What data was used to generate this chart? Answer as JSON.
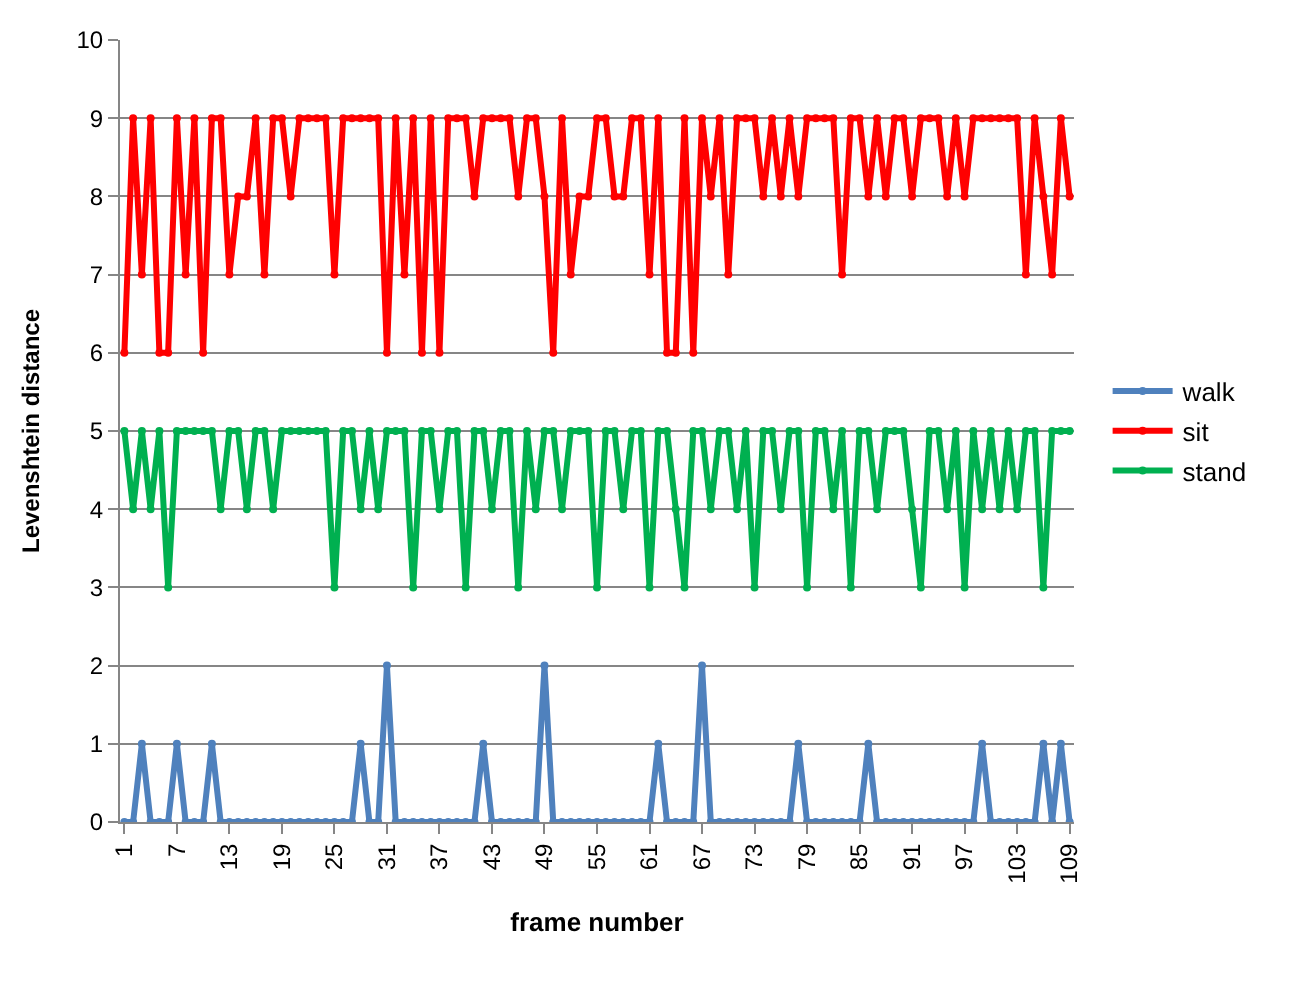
{
  "chart_data": {
    "type": "line",
    "xlabel": "frame number",
    "ylabel": "Levenshtein distance",
    "categories": [
      "1",
      null,
      null,
      null,
      null,
      null,
      "7",
      null,
      null,
      null,
      null,
      null,
      "13",
      null,
      null,
      null,
      null,
      null,
      "19",
      null,
      null,
      null,
      null,
      null,
      "25",
      null,
      null,
      null,
      null,
      null,
      "31",
      null,
      null,
      null,
      null,
      null,
      "37",
      null,
      null,
      null,
      null,
      null,
      "43",
      null,
      null,
      null,
      null,
      null,
      "49",
      null,
      null,
      null,
      null,
      null,
      "55",
      null,
      null,
      null,
      null,
      null,
      "61",
      null,
      null,
      null,
      null,
      null,
      "67",
      null,
      null,
      null,
      null,
      null,
      "73",
      null,
      null,
      null,
      null,
      null,
      "79",
      null,
      null,
      null,
      null,
      null,
      "85",
      null,
      null,
      null,
      null,
      null,
      "91",
      null,
      null,
      null,
      null,
      null,
      "97",
      null,
      null,
      null,
      null,
      null,
      "103",
      null,
      null,
      null,
      null,
      null,
      "109"
    ],
    "series": [
      {
        "name": "walk",
        "color": "#4f81bd",
        "values": [
          0,
          0,
          1,
          0,
          0,
          0,
          1,
          0,
          0,
          0,
          1,
          0,
          0,
          0,
          0,
          0,
          0,
          0,
          0,
          0,
          0,
          0,
          0,
          0,
          0,
          0,
          0,
          1,
          0,
          0,
          2,
          0,
          0,
          0,
          0,
          0,
          0,
          0,
          0,
          0,
          0,
          1,
          0,
          0,
          0,
          0,
          0,
          0,
          2,
          0,
          0,
          0,
          0,
          0,
          0,
          0,
          0,
          0,
          0,
          0,
          0,
          1,
          0,
          0,
          0,
          0,
          2,
          0,
          0,
          0,
          0,
          0,
          0,
          0,
          0,
          0,
          0,
          1,
          0,
          0,
          0,
          0,
          0,
          0,
          0,
          1,
          0,
          0,
          0,
          0,
          0,
          0,
          0,
          0,
          0,
          0,
          0,
          0,
          1,
          0,
          0,
          0,
          0,
          0,
          0,
          1,
          0,
          1,
          0
        ]
      },
      {
        "name": "sit",
        "color": "#ff0000",
        "values": [
          6,
          9,
          7,
          9,
          6,
          6,
          9,
          7,
          9,
          6,
          9,
          9,
          7,
          8,
          8,
          9,
          7,
          9,
          9,
          8,
          9,
          9,
          9,
          9,
          7,
          9,
          9,
          9,
          9,
          9,
          6,
          9,
          7,
          9,
          6,
          9,
          6,
          9,
          9,
          9,
          8,
          9,
          9,
          9,
          9,
          8,
          9,
          9,
          8,
          6,
          9,
          7,
          8,
          8,
          9,
          9,
          8,
          8,
          9,
          9,
          7,
          9,
          6,
          6,
          9,
          6,
          9,
          8,
          9,
          7,
          9,
          9,
          9,
          8,
          9,
          8,
          9,
          8,
          9,
          9,
          9,
          9,
          7,
          9,
          9,
          8,
          9,
          8,
          9,
          9,
          8,
          9,
          9,
          9,
          8,
          9,
          8,
          9,
          9,
          9,
          9,
          9,
          9,
          7,
          9,
          8,
          7,
          9,
          8
        ]
      },
      {
        "name": "stand",
        "color": "#00b050",
        "values": [
          5,
          4,
          5,
          4,
          5,
          3,
          5,
          5,
          5,
          5,
          5,
          4,
          5,
          5,
          4,
          5,
          5,
          4,
          5,
          5,
          5,
          5,
          5,
          5,
          3,
          5,
          5,
          4,
          5,
          4,
          5,
          5,
          5,
          3,
          5,
          5,
          4,
          5,
          5,
          3,
          5,
          5,
          4,
          5,
          5,
          3,
          5,
          4,
          5,
          5,
          4,
          5,
          5,
          5,
          3,
          5,
          5,
          4,
          5,
          5,
          3,
          5,
          5,
          4,
          3,
          5,
          5,
          4,
          5,
          5,
          4,
          5,
          3,
          5,
          5,
          4,
          5,
          5,
          3,
          5,
          5,
          4,
          5,
          3,
          5,
          5,
          4,
          5,
          5,
          5,
          4,
          3,
          5,
          5,
          4,
          5,
          3,
          5,
          4,
          5,
          4,
          5,
          4,
          5,
          5,
          3,
          5,
          5,
          5
        ]
      }
    ],
    "ylim": [
      0,
      10
    ],
    "yticks": [
      0,
      1,
      2,
      3,
      4,
      5,
      6,
      7,
      8,
      9,
      10
    ],
    "grid": "y",
    "legend": "right",
    "marker": "circle",
    "line_style": "solid"
  }
}
